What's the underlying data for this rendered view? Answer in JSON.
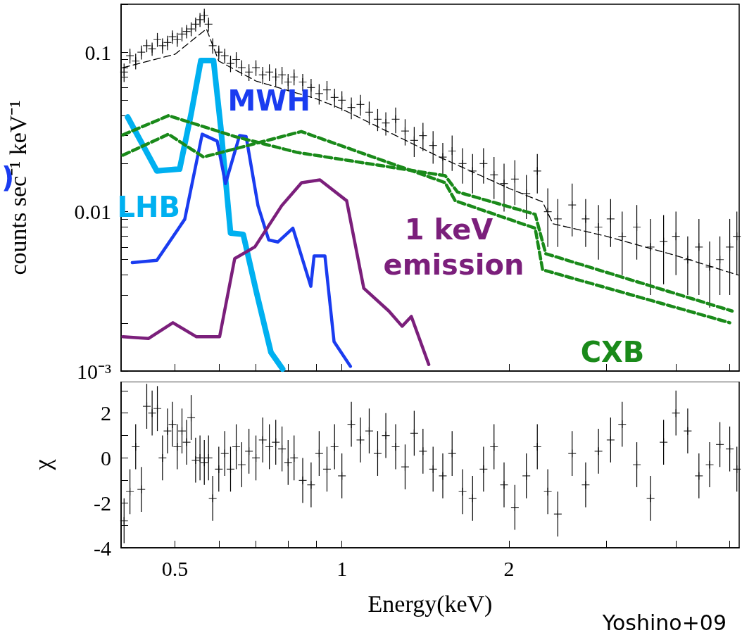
{
  "chart_data": [
    {
      "type": "scatter",
      "ylabel": "counts sec⁻¹ keV⁻¹",
      "annotations": [
        ")"
      ],
      "log": "xy",
      "tick_labels": "y",
      "legend": false,
      "grid": false,
      "xlim": [
        0.4,
        5.2
      ],
      "xticks": [
        0.5,
        {
          "value": 0.6,
          "label": null
        },
        {
          "value": 0.7,
          "label": null
        },
        {
          "value": 0.8,
          "label": null
        },
        {
          "value": 0.9,
          "label": null
        },
        1,
        2,
        {
          "value": 3,
          "label": null
        },
        {
          "value": 4,
          "label": null
        },
        {
          "value": 5,
          "label": null
        }
      ],
      "ylim": [
        0.001,
        0.2
      ],
      "yticks": [
        {
          "value": 0.001,
          "label": "10⁻³"
        },
        {
          "value": 0.002,
          "label": null
        },
        {
          "value": 0.003,
          "label": null
        },
        {
          "value": 0.004,
          "label": null
        },
        {
          "value": 0.005,
          "label": null
        },
        {
          "value": 0.006,
          "label": null
        },
        {
          "value": 0.007,
          "label": null
        },
        {
          "value": 0.008,
          "label": null
        },
        {
          "value": 0.009,
          "label": null
        },
        0.01,
        {
          "value": 0.02,
          "label": null
        },
        {
          "value": 0.03,
          "label": null
        },
        {
          "value": 0.04,
          "label": null
        },
        {
          "value": 0.05,
          "label": null
        },
        {
          "value": 0.06,
          "label": null
        },
        {
          "value": 0.07,
          "label": null
        },
        {
          "value": 0.08,
          "label": null
        },
        {
          "value": 0.09,
          "label": null
        },
        0.1,
        {
          "value": 0.2,
          "label": null
        }
      ],
      "series": [
        {
          "marker": "cross",
          "color": "#000000",
          "x": [
            0.405,
            0.415,
            0.425,
            0.435,
            0.445,
            0.455,
            0.465,
            0.475,
            0.485,
            0.495,
            0.505,
            0.515,
            0.525,
            0.535,
            0.545,
            0.555,
            0.565,
            0.575,
            0.585,
            0.6,
            0.615,
            0.63,
            0.645,
            0.66,
            0.68,
            0.7,
            0.72,
            0.74,
            0.76,
            0.78,
            0.8,
            0.82,
            0.85,
            0.88,
            0.91,
            0.94,
            0.97,
            1.0,
            1.04,
            1.08,
            1.12,
            1.16,
            1.2,
            1.25,
            1.3,
            1.35,
            1.4,
            1.46,
            1.52,
            1.58,
            1.65,
            1.72,
            1.8,
            1.88,
            1.96,
            2.05,
            2.15,
            2.25,
            2.35,
            2.45,
            2.6,
            2.75,
            2.9,
            3.05,
            3.2,
            3.4,
            3.6,
            3.8,
            4.0,
            4.2,
            4.4,
            4.6,
            4.8,
            5.0,
            5.15
          ],
          "values": [
            0.075,
            0.095,
            0.088,
            0.1,
            0.11,
            0.105,
            0.12,
            0.11,
            0.115,
            0.125,
            0.12,
            0.13,
            0.135,
            0.14,
            0.15,
            0.16,
            0.17,
            0.15,
            0.11,
            0.1,
            0.095,
            0.085,
            0.09,
            0.08,
            0.075,
            0.08,
            0.072,
            0.075,
            0.07,
            0.072,
            0.065,
            0.07,
            0.065,
            0.06,
            0.055,
            0.058,
            0.052,
            0.05,
            0.045,
            0.047,
            0.042,
            0.038,
            0.036,
            0.038,
            0.032,
            0.028,
            0.03,
            0.026,
            0.022,
            0.024,
            0.02,
            0.018,
            0.02,
            0.017,
            0.015,
            0.016,
            0.013,
            0.018,
            0.01,
            0.009,
            0.011,
            0.009,
            0.008,
            0.009,
            0.007,
            0.008,
            0.006,
            0.0065,
            0.007,
            0.005,
            0.006,
            0.0045,
            0.005,
            0.006,
            0.007
          ],
          "errors": [
            0.01,
            0.01,
            0.01,
            0.01,
            0.01,
            0.01,
            0.012,
            0.012,
            0.012,
            0.012,
            0.012,
            0.013,
            0.013,
            0.014,
            0.015,
            0.016,
            0.017,
            0.015,
            0.012,
            0.01,
            0.01,
            0.01,
            0.01,
            0.009,
            0.009,
            0.009,
            0.009,
            0.009,
            0.009,
            0.009,
            0.008,
            0.008,
            0.008,
            0.008,
            0.008,
            0.008,
            0.007,
            0.007,
            0.007,
            0.007,
            0.007,
            0.006,
            0.006,
            0.007,
            0.006,
            0.006,
            0.006,
            0.006,
            0.005,
            0.006,
            0.005,
            0.005,
            0.005,
            0.005,
            0.005,
            0.005,
            0.004,
            0.005,
            0.004,
            0.003,
            0.004,
            0.003,
            0.003,
            0.003,
            0.003,
            0.003,
            0.003,
            0.003,
            0.003,
            0.002,
            0.003,
            0.002,
            0.002,
            0.003,
            0.003
          ]
        },
        {
          "type": "line",
          "color": "#000000",
          "line_style": "dashed",
          "x": [
            0.403,
            0.5,
            0.57,
            0.6,
            0.7,
            0.9,
            1.0,
            1.5,
            2.0,
            2.3,
            2.4,
            3.0,
            4.0,
            5.18
          ],
          "values": [
            0.08,
            0.097,
            0.14,
            0.088,
            0.066,
            0.051,
            0.044,
            0.022,
            0.014,
            0.0115,
            0.0084,
            0.007,
            0.0053,
            0.004
          ]
        },
        {
          "type": "line",
          "name": "LHB",
          "color": "#00b0f0",
          "line_style": "solid",
          "x": [
            0.411,
            0.464,
            0.51,
            0.535,
            0.557,
            0.587,
            0.605,
            0.63,
            0.664,
            0.702,
            0.745,
            0.782
          ],
          "values": [
            0.0392,
            0.018,
            0.0185,
            0.0412,
            0.0887,
            0.0887,
            0.0337,
            0.00734,
            0.0072,
            0.00309,
            0.00131,
            0.00103
          ]
        },
        {
          "type": "line",
          "name": "MWH",
          "color": "#1a3cf0",
          "line_style": "solid",
          "x": [
            0.419,
            0.464,
            0.521,
            0.56,
            0.596,
            0.617,
            0.654,
            0.672,
            0.706,
            0.738,
            0.767,
            0.816,
            0.879,
            0.891,
            0.932,
            0.968,
            1.036
          ],
          "values": [
            0.00479,
            0.00495,
            0.00896,
            0.0306,
            0.0277,
            0.015,
            0.03,
            0.0296,
            0.0109,
            0.00665,
            0.00645,
            0.00787,
            0.0034,
            0.00528,
            0.00528,
            0.00153,
            0.00107
          ]
        },
        {
          "type": "line",
          "name": "1 keV emission",
          "color": "#7b1f7b",
          "line_style": "solid",
          "x": [
            0.403,
            0.448,
            0.496,
            0.547,
            0.602,
            0.641,
            0.697,
            0.779,
            0.846,
            0.913,
            1.02,
            1.095,
            1.215,
            1.284,
            1.334,
            1.434
          ],
          "values": [
            0.00164,
            0.0016,
            0.00201,
            0.00164,
            0.00164,
            0.00508,
            0.00601,
            0.0109,
            0.0152,
            0.0158,
            0.0117,
            0.00331,
            0.00238,
            0.00191,
            0.0022,
            0.0011
          ]
        },
        {
          "type": "line",
          "name": "CXB",
          "color": "#1a8a1a",
          "line_style": "dashed",
          "x": [
            0.403,
            0.487,
            0.641,
            0.832,
            1.535,
            1.615,
            2.23,
            2.33,
            5.05
          ],
          "values": [
            0.0303,
            0.04,
            0.0296,
            0.0235,
            0.0168,
            0.0133,
            0.00962,
            0.00545,
            0.00238
          ]
        },
        {
          "type": "line",
          "color": "#1a8a1a",
          "line_style": "dashed",
          "x": [
            0.403,
            0.487,
            0.563,
            0.845,
            1.535,
            1.6,
            2.23,
            2.3,
            5.0
          ],
          "values": [
            0.0226,
            0.0306,
            0.022,
            0.0318,
            0.0152,
            0.0117,
            0.00787,
            0.00432,
            0.00201
          ]
        }
      ]
    },
    {
      "type": "scatter",
      "xlabel": "Energy(keV)",
      "ylabel": "χ",
      "annotations": [
        "Yoshino+09"
      ],
      "log": "x",
      "legend": false,
      "grid": false,
      "xlim": [
        0.4,
        5.2
      ],
      "xticks": [
        0.5,
        {
          "value": 0.6,
          "label": null
        },
        {
          "value": 0.7,
          "label": null
        },
        {
          "value": 0.8,
          "label": null
        },
        {
          "value": 0.9,
          "label": null
        },
        1,
        2,
        {
          "value": 3,
          "label": null
        },
        {
          "value": 4,
          "label": null
        },
        {
          "value": 5,
          "label": null
        }
      ],
      "ylim": [
        -4,
        3.4
      ],
      "yticks": [
        -4,
        {
          "value": -3,
          "label": null
        },
        -2,
        {
          "value": -1,
          "label": null
        },
        0,
        {
          "value": 1,
          "label": null
        },
        2,
        {
          "value": 3,
          "label": null
        }
      ],
      "series": [
        {
          "marker": "cross",
          "color": "#000000",
          "x": [
            0.405,
            0.415,
            0.425,
            0.435,
            0.445,
            0.455,
            0.465,
            0.475,
            0.485,
            0.495,
            0.505,
            0.515,
            0.525,
            0.535,
            0.545,
            0.555,
            0.565,
            0.575,
            0.585,
            0.6,
            0.615,
            0.63,
            0.645,
            0.66,
            0.68,
            0.7,
            0.72,
            0.74,
            0.76,
            0.78,
            0.8,
            0.82,
            0.85,
            0.88,
            0.91,
            0.94,
            0.97,
            1.0,
            1.04,
            1.08,
            1.12,
            1.16,
            1.2,
            1.25,
            1.3,
            1.35,
            1.4,
            1.46,
            1.52,
            1.58,
            1.65,
            1.72,
            1.8,
            1.88,
            1.96,
            2.05,
            2.15,
            2.25,
            2.35,
            2.45,
            2.6,
            2.75,
            2.9,
            3.05,
            3.2,
            3.4,
            3.6,
            3.8,
            4.0,
            4.2,
            4.4,
            4.6,
            4.8,
            5.0,
            5.15
          ],
          "values": [
            -2.8,
            -1.5,
            0.5,
            -1.4,
            2.3,
            2,
            2.2,
            0,
            1.2,
            1.5,
            0.5,
            1.2,
            0.7,
            1.8,
            -0.1,
            0,
            -0.2,
            0,
            -1.8,
            -0.5,
            0.2,
            -0.5,
            0.5,
            -0.3,
            0.3,
            0,
            0.8,
            0.5,
            0.7,
            0.4,
            -0.2,
            0,
            -1,
            -1.2,
            0.2,
            -0.5,
            0.5,
            -0.8,
            1.5,
            0.8,
            1.2,
            0.2,
            1,
            0.5,
            -0.4,
            1.1,
            0.3,
            -0.5,
            -0.8,
            0.2,
            -1.5,
            -1.8,
            -0.5,
            0.5,
            -1.2,
            -2.2,
            -0.8,
            0.5,
            -1.5,
            -2.5,
            0.2,
            -1.2,
            0.3,
            0.8,
            1.5,
            -0.3,
            -1.8,
            0.7,
            2,
            1.2,
            -0.8,
            -0.3,
            0.6,
            0.4,
            -0.5
          ],
          "errors": [
            1,
            1,
            1,
            1,
            1,
            1,
            1,
            1,
            1,
            1,
            1,
            1,
            1,
            1,
            1,
            1,
            1,
            1,
            1,
            1,
            1,
            1,
            1,
            1,
            1,
            1,
            1,
            1,
            1,
            1,
            1,
            1,
            1,
            1,
            1,
            1,
            1,
            1,
            1,
            1,
            1,
            1,
            1,
            1,
            1,
            1,
            1,
            1,
            1,
            1,
            1,
            1,
            1,
            1,
            1,
            1,
            1,
            1,
            1,
            1,
            1,
            1,
            1,
            1,
            1,
            1,
            1,
            1,
            1,
            1,
            1,
            1,
            1,
            1,
            1
          ]
        }
      ]
    }
  ]
}
